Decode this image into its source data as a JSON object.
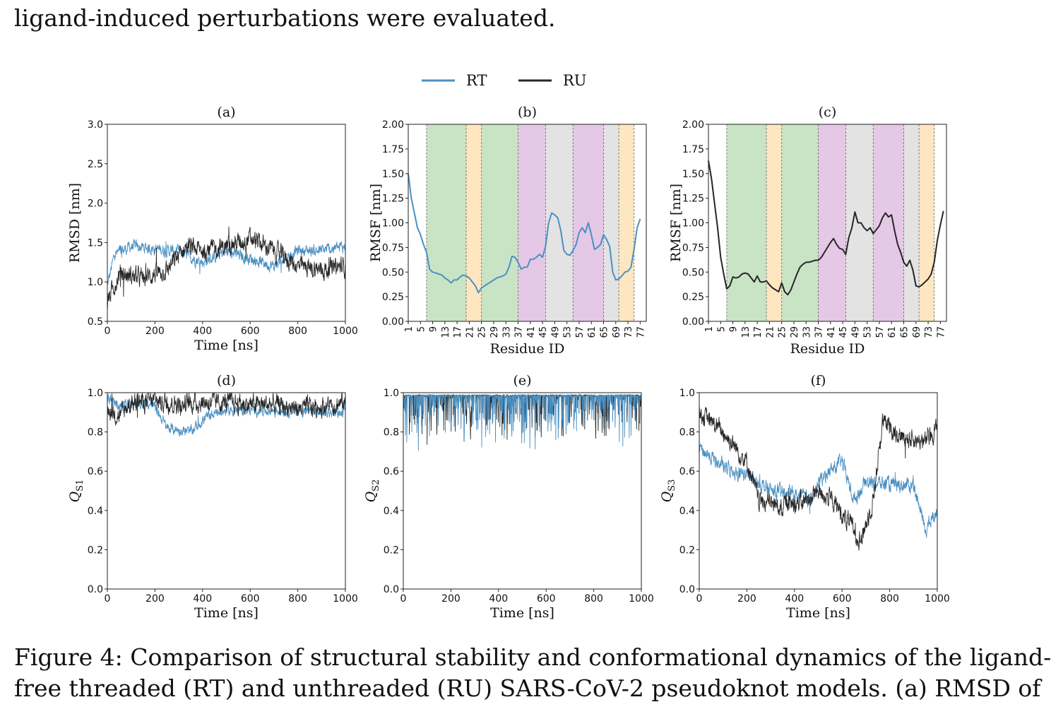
{
  "page": {
    "top_text": "ligand-induced perturbations were evaluated.",
    "caption_line1": "Figure 4:  Comparison of structural stability and conformational dynamics of the ligand-",
    "caption_line2": "free threaded (RT) and unthreaded (RU) SARS-CoV-2 pseudoknot models.  (a) RMSD of"
  },
  "legend": {
    "series": [
      {
        "name": "RT",
        "color": "#4a90c2"
      },
      {
        "name": "RU",
        "color": "#262626"
      }
    ],
    "placement": "top-center"
  },
  "colors": {
    "RT": "#4a90c2",
    "RU": "#262626",
    "green": "#c9e4c5",
    "orange": "#fde6c0",
    "purple": "#e5c8e5",
    "gray": "#e3e3e3"
  },
  "chart_data": [
    {
      "id": "a",
      "title": "(a)",
      "type": "line",
      "xlabel": "Time [ns]",
      "ylabel": "RMSD [nm]",
      "xlim": [
        0,
        1000
      ],
      "ylim": [
        0.5,
        3.0
      ],
      "xticks": [
        0,
        200,
        400,
        600,
        800,
        1000
      ],
      "yticks": [
        0.5,
        1.0,
        1.5,
        2.0,
        2.5,
        3.0
      ],
      "series": [
        {
          "name": "RT",
          "noise": 0.07,
          "points": [
            [
              0,
              0.95
            ],
            [
              30,
              1.35
            ],
            [
              100,
              1.45
            ],
            [
              200,
              1.42
            ],
            [
              300,
              1.38
            ],
            [
              400,
              1.25
            ],
            [
              500,
              1.38
            ],
            [
              600,
              1.3
            ],
            [
              700,
              1.2
            ],
            [
              800,
              1.4
            ],
            [
              900,
              1.4
            ],
            [
              1000,
              1.45
            ]
          ]
        },
        {
          "name": "RU",
          "noise": 0.11,
          "points": [
            [
              0,
              0.75
            ],
            [
              50,
              1.1
            ],
            [
              150,
              1.05
            ],
            [
              250,
              1.15
            ],
            [
              330,
              1.45
            ],
            [
              400,
              1.4
            ],
            [
              500,
              1.45
            ],
            [
              600,
              1.55
            ],
            [
              700,
              1.4
            ],
            [
              800,
              1.2
            ],
            [
              900,
              1.15
            ],
            [
              1000,
              1.2
            ]
          ]
        }
      ]
    },
    {
      "id": "b",
      "title": "(b)",
      "type": "line-regions",
      "xlabel": "Residue ID",
      "ylabel": "RMSF [nm]",
      "xlim": [
        1,
        79
      ],
      "ylim": [
        0,
        2.0
      ],
      "xticks": [
        1,
        5,
        9,
        13,
        17,
        21,
        25,
        29,
        33,
        37,
        41,
        45,
        49,
        53,
        57,
        61,
        65,
        69,
        73,
        77
      ],
      "yticks": [
        0.0,
        0.25,
        0.5,
        0.75,
        1.0,
        1.25,
        1.5,
        1.75,
        2.0
      ],
      "regions": [
        {
          "from": 7,
          "to": 20,
          "color": "green"
        },
        {
          "from": 20,
          "to": 25,
          "color": "orange"
        },
        {
          "from": 25,
          "to": 37,
          "color": "green"
        },
        {
          "from": 37,
          "to": 46,
          "color": "purple"
        },
        {
          "from": 46,
          "to": 55,
          "color": "gray"
        },
        {
          "from": 55,
          "to": 65,
          "color": "purple"
        },
        {
          "from": 65,
          "to": 70,
          "color": "gray"
        },
        {
          "from": 70,
          "to": 75,
          "color": "orange"
        }
      ],
      "series": [
        {
          "name": "RT",
          "values": [
            1.5,
            1.25,
            1.1,
            0.95,
            0.88,
            0.78,
            0.7,
            0.53,
            0.5,
            0.49,
            0.48,
            0.47,
            0.44,
            0.42,
            0.39,
            0.42,
            0.42,
            0.45,
            0.47,
            0.46,
            0.44,
            0.4,
            0.36,
            0.29,
            0.34,
            0.36,
            0.38,
            0.4,
            0.42,
            0.44,
            0.45,
            0.46,
            0.48,
            0.55,
            0.66,
            0.65,
            0.6,
            0.53,
            0.55,
            0.55,
            0.63,
            0.63,
            0.65,
            0.68,
            0.65,
            0.76,
            1.0,
            1.1,
            1.08,
            1.05,
            0.92,
            0.72,
            0.68,
            0.67,
            0.72,
            0.78,
            0.9,
            0.95,
            0.9,
            1.0,
            0.88,
            0.73,
            0.75,
            0.78,
            0.88,
            0.83,
            0.76,
            0.5,
            0.42,
            0.43,
            0.46,
            0.5,
            0.51,
            0.55,
            0.73,
            0.95,
            1.04
          ]
        }
      ]
    },
    {
      "id": "c",
      "title": "(c)",
      "type": "line-regions",
      "xlabel": "Residue ID",
      "ylabel": "RMSF [nm]",
      "xlim": [
        1,
        79
      ],
      "ylim": [
        0,
        2.0
      ],
      "xticks": [
        1,
        5,
        9,
        13,
        17,
        21,
        25,
        29,
        33,
        37,
        41,
        45,
        49,
        53,
        57,
        61,
        65,
        69,
        73,
        77
      ],
      "yticks": [
        0.0,
        0.25,
        0.5,
        0.75,
        1.0,
        1.25,
        1.5,
        1.75,
        2.0
      ],
      "regions": [
        {
          "from": 7,
          "to": 20,
          "color": "green"
        },
        {
          "from": 20,
          "to": 25,
          "color": "orange"
        },
        {
          "from": 25,
          "to": 37,
          "color": "green"
        },
        {
          "from": 37,
          "to": 46,
          "color": "purple"
        },
        {
          "from": 46,
          "to": 55,
          "color": "gray"
        },
        {
          "from": 55,
          "to": 65,
          "color": "purple"
        },
        {
          "from": 65,
          "to": 70,
          "color": "gray"
        },
        {
          "from": 70,
          "to": 75,
          "color": "orange"
        }
      ],
      "series": [
        {
          "name": "RU",
          "values": [
            1.63,
            1.45,
            1.2,
            0.95,
            0.65,
            0.48,
            0.33,
            0.36,
            0.45,
            0.44,
            0.45,
            0.48,
            0.49,
            0.48,
            0.44,
            0.4,
            0.46,
            0.4,
            0.4,
            0.41,
            0.37,
            0.34,
            0.32,
            0.3,
            0.39,
            0.3,
            0.27,
            0.32,
            0.4,
            0.48,
            0.55,
            0.58,
            0.6,
            0.6,
            0.61,
            0.62,
            0.62,
            0.65,
            0.7,
            0.75,
            0.8,
            0.84,
            0.78,
            0.74,
            0.73,
            0.68,
            0.85,
            0.95,
            1.11,
            1.0,
            1.0,
            0.95,
            0.92,
            0.95,
            0.89,
            0.93,
            0.97,
            1.05,
            1.1,
            1.06,
            1.08,
            0.92,
            0.78,
            0.7,
            0.6,
            0.56,
            0.62,
            0.52,
            0.36,
            0.35,
            0.37,
            0.4,
            0.43,
            0.48,
            0.6,
            0.82,
            0.98,
            1.12
          ]
        }
      ]
    },
    {
      "id": "d",
      "title": "(d)",
      "type": "line",
      "xlabel": "Time [ns]",
      "ylabel": "Q_S1",
      "xlim": [
        0,
        1000
      ],
      "ylim": [
        0,
        1.0
      ],
      "xticks": [
        0,
        200,
        400,
        600,
        800,
        1000
      ],
      "yticks": [
        0.0,
        0.2,
        0.4,
        0.6,
        0.8,
        1.0
      ],
      "series": [
        {
          "name": "RT",
          "noise": 0.025,
          "points": [
            [
              0,
              0.98
            ],
            [
              50,
              0.93
            ],
            [
              150,
              0.95
            ],
            [
              200,
              0.93
            ],
            [
              250,
              0.82
            ],
            [
              350,
              0.8
            ],
            [
              420,
              0.88
            ],
            [
              500,
              0.91
            ],
            [
              600,
              0.91
            ],
            [
              700,
              0.91
            ],
            [
              800,
              0.91
            ],
            [
              900,
              0.9
            ],
            [
              1000,
              0.9
            ]
          ]
        },
        {
          "name": "RU",
          "noise": 0.045,
          "points": [
            [
              0,
              0.92
            ],
            [
              50,
              0.88
            ],
            [
              100,
              0.95
            ],
            [
              200,
              0.96
            ],
            [
              300,
              0.94
            ],
            [
              400,
              0.95
            ],
            [
              500,
              0.95
            ],
            [
              600,
              0.94
            ],
            [
              700,
              0.94
            ],
            [
              800,
              0.92
            ],
            [
              900,
              0.93
            ],
            [
              1000,
              0.95
            ]
          ]
        }
      ]
    },
    {
      "id": "e",
      "title": "(e)",
      "type": "line",
      "xlabel": "Time [ns]",
      "ylabel": "Q_S2",
      "xlim": [
        0,
        1000
      ],
      "ylim": [
        0,
        1.0
      ],
      "xticks": [
        0,
        200,
        400,
        600,
        800,
        1000
      ],
      "yticks": [
        0.0,
        0.2,
        0.4,
        0.6,
        0.8,
        1.0
      ],
      "series": [
        {
          "name": "RU",
          "noise": 0.0,
          "spiky": true,
          "points": [
            [
              0,
              0.99
            ],
            [
              1000,
              0.99
            ]
          ]
        },
        {
          "name": "RT",
          "noise": 0.0,
          "spiky": true,
          "points": [
            [
              0,
              0.99
            ],
            [
              1000,
              0.99
            ]
          ]
        }
      ]
    },
    {
      "id": "f",
      "title": "(f)",
      "type": "line",
      "xlabel": "Time [ns]",
      "ylabel": "Q_S3",
      "xlim": [
        0,
        1000
      ],
      "ylim": [
        0,
        1.0
      ],
      "xticks": [
        0,
        200,
        400,
        600,
        800,
        1000
      ],
      "yticks": [
        0.0,
        0.2,
        0.4,
        0.6,
        0.8,
        1.0
      ],
      "series": [
        {
          "name": "RT",
          "noise": 0.035,
          "points": [
            [
              0,
              0.72
            ],
            [
              100,
              0.62
            ],
            [
              200,
              0.58
            ],
            [
              300,
              0.5
            ],
            [
              400,
              0.48
            ],
            [
              480,
              0.45
            ],
            [
              500,
              0.55
            ],
            [
              600,
              0.65
            ],
            [
              650,
              0.45
            ],
            [
              700,
              0.55
            ],
            [
              800,
              0.53
            ],
            [
              900,
              0.53
            ],
            [
              950,
              0.3
            ],
            [
              1000,
              0.4
            ]
          ]
        },
        {
          "name": "RU",
          "noise": 0.045,
          "points": [
            [
              0,
              0.9
            ],
            [
              100,
              0.8
            ],
            [
              200,
              0.65
            ],
            [
              250,
              0.45
            ],
            [
              350,
              0.42
            ],
            [
              450,
              0.45
            ],
            [
              500,
              0.5
            ],
            [
              560,
              0.45
            ],
            [
              620,
              0.35
            ],
            [
              680,
              0.25
            ],
            [
              730,
              0.45
            ],
            [
              770,
              0.85
            ],
            [
              850,
              0.78
            ],
            [
              950,
              0.75
            ],
            [
              1000,
              0.82
            ]
          ]
        }
      ]
    }
  ]
}
